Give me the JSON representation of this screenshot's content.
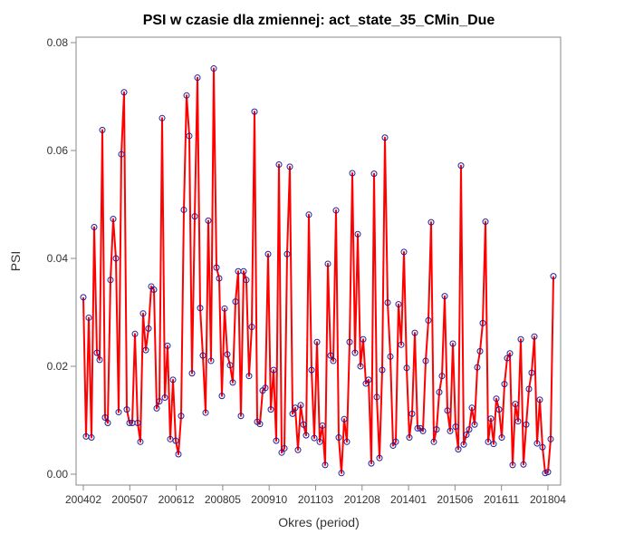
{
  "chart_data": {
    "type": "line",
    "title": "PSI w czasie dla zmiennej: act_state_35_CMin_Due",
    "xlabel": "Okres (period)",
    "ylabel": "PSI",
    "ylim": [
      0,
      0.08
    ],
    "yticks": [
      "0.00",
      "0.02",
      "0.04",
      "0.06",
      "0.08"
    ],
    "yticks_values": [
      0,
      0.02,
      0.04,
      0.06,
      0.08
    ],
    "xticks": [
      "200402",
      "200507",
      "200612",
      "200805",
      "200910",
      "201103",
      "201208",
      "201401",
      "201506",
      "201611",
      "201804"
    ],
    "x_start": "200402",
    "x_end": "201806",
    "grid": false,
    "colors": {
      "line": "#ff0000",
      "marker": "#1f1f9e",
      "axis": "#888888"
    },
    "series": [
      {
        "values": [
          0.0328,
          0.007,
          0.029,
          0.0068,
          0.0458,
          0.0225,
          0.0212,
          0.0638,
          0.0105,
          0.0095,
          0.036,
          0.0473,
          0.04,
          0.0115,
          0.0593,
          0.0708,
          0.012,
          0.0095,
          0.0095,
          0.026,
          0.0095,
          0.006,
          0.0298,
          0.023,
          0.027,
          0.0348,
          0.0342,
          0.0122,
          0.0135,
          0.066,
          0.0142,
          0.0238,
          0.0065,
          0.0175,
          0.0062,
          0.0037,
          0.0108,
          0.049,
          0.0702,
          0.0627,
          0.0187,
          0.0478,
          0.0735,
          0.0308,
          0.022,
          0.0114,
          0.047,
          0.021,
          0.0752,
          0.0383,
          0.0363,
          0.0145,
          0.0307,
          0.0222,
          0.0202,
          0.017,
          0.032,
          0.0376,
          0.0108,
          0.0376,
          0.036,
          0.0182,
          0.0273,
          0.0672,
          0.0097,
          0.0093,
          0.0155,
          0.016,
          0.0408,
          0.012,
          0.0193,
          0.0062,
          0.0574,
          0.004,
          0.0048,
          0.0408,
          0.057,
          0.0112,
          0.0123,
          0.0045,
          0.0128,
          0.0092,
          0.0072,
          0.0481,
          0.0193,
          0.0067,
          0.0245,
          0.006,
          0.009,
          0.0017,
          0.039,
          0.022,
          0.021,
          0.0489,
          0.0068,
          0.0002,
          0.0102,
          0.006,
          0.0245,
          0.0558,
          0.0225,
          0.0445,
          0.02,
          0.025,
          0.0168,
          0.0175,
          0.002,
          0.0557,
          0.0143,
          0.003,
          0.0193,
          0.0624,
          0.0318,
          0.0218,
          0.0053,
          0.006,
          0.0315,
          0.024,
          0.0412,
          0.0197,
          0.0068,
          0.0112,
          0.0262,
          0.0085,
          0.0085,
          0.008,
          0.021,
          0.0285,
          0.0467,
          0.006,
          0.0083,
          0.0152,
          0.0182,
          0.033,
          0.0118,
          0.008,
          0.0242,
          0.0088,
          0.0046,
          0.0572,
          0.0055,
          0.0073,
          0.0083,
          0.0123,
          0.0092,
          0.0198,
          0.0228,
          0.028,
          0.0468,
          0.006,
          0.0103,
          0.0056,
          0.014,
          0.012,
          0.0068,
          0.0167,
          0.0215,
          0.0224,
          0.0017,
          0.013,
          0.0098,
          0.025,
          0.0018,
          0.0092,
          0.0158,
          0.0188,
          0.0255,
          0.0057,
          0.0138,
          0.005,
          0.0002,
          0.0004,
          0.0065,
          0.0367
        ]
      }
    ]
  }
}
